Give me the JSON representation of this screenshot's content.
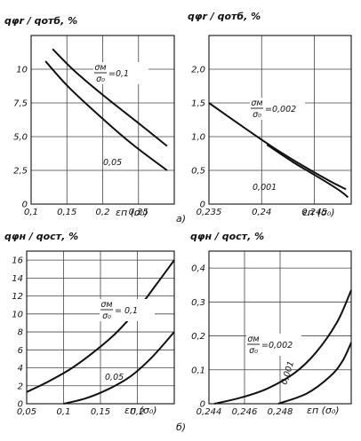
{
  "figure": {
    "label_a": "а)",
    "label_b": "б)"
  },
  "colors": {
    "ink": "#111111",
    "grid": "#444444",
    "paper": "#ffffff"
  },
  "chart_data": [
    {
      "id": "top-left",
      "type": "line",
      "title": "qφr / qотб, %",
      "xlabel": "εп (σ₀)",
      "ylabel": "",
      "xlim": [
        0.1,
        0.3
      ],
      "ylim": [
        0,
        12.5
      ],
      "x_ticks": [
        0.1,
        0.15,
        0.2,
        0.25
      ],
      "x_tick_labels": [
        "0,1",
        "0,15",
        "0,2",
        "0,25"
      ],
      "y_ticks": [
        0,
        2.5,
        5.0,
        7.5,
        10
      ],
      "y_tick_labels": [
        "0",
        "2,5",
        "5,0",
        "7,5",
        "10"
      ],
      "grid": true,
      "series": [
        {
          "name": "σм/σ₀ = 0,1",
          "x": [
            0.13,
            0.16,
            0.2,
            0.25,
            0.29
          ],
          "y": [
            11.5,
            9.9,
            8.1,
            6.0,
            4.3
          ]
        },
        {
          "name": "0,05",
          "x": [
            0.12,
            0.15,
            0.19,
            0.24,
            0.29
          ],
          "y": [
            10.6,
            8.8,
            6.8,
            4.5,
            2.5
          ]
        }
      ],
      "annotations": [
        {
          "text_num": "σм",
          "text_den": "σ₀",
          "text_val": "=0,1",
          "series": 0
        },
        {
          "text": "0,05",
          "series": 1
        }
      ]
    },
    {
      "id": "top-right",
      "type": "line",
      "title": "qφr / qотб, %",
      "xlabel": "εп (σ₀)",
      "ylabel": "",
      "xlim": [
        0.235,
        0.2485
      ],
      "ylim": [
        0,
        2.5
      ],
      "x_ticks": [
        0.235,
        0.24,
        0.245
      ],
      "x_tick_labels": [
        "0,235",
        "0,24",
        "0,245"
      ],
      "y_ticks": [
        0,
        0.5,
        1.0,
        1.5,
        2.0
      ],
      "y_tick_labels": [
        "0",
        "0,5",
        "1,0",
        "1,5",
        "2,0"
      ],
      "grid": true,
      "series": [
        {
          "name": "σм/σ₀ = 0,002",
          "x": [
            0.235,
            0.238,
            0.241,
            0.244,
            0.2465,
            0.248
          ],
          "y": [
            1.5,
            1.17,
            0.85,
            0.56,
            0.34,
            0.22
          ]
        },
        {
          "name": "0,001",
          "x": [
            0.2405,
            0.243,
            0.2445,
            0.246,
            0.2475,
            0.2482
          ],
          "y": [
            0.88,
            0.62,
            0.48,
            0.34,
            0.19,
            0.1
          ]
        }
      ],
      "annotations": [
        {
          "text_num": "σм",
          "text_den": "σ₀",
          "text_val": "=0,002",
          "series": 0
        },
        {
          "text": "0,001",
          "series": 1
        }
      ]
    },
    {
      "id": "bottom-left",
      "type": "line",
      "title": "qφн / qост, %",
      "xlabel": "εп (σ₀)",
      "ylabel": "",
      "xlim": [
        0.05,
        0.25
      ],
      "ylim": [
        0,
        17
      ],
      "x_ticks": [
        0.05,
        0.1,
        0.15,
        0.2
      ],
      "x_tick_labels": [
        "0,05",
        "0,1",
        "0,15",
        "0,2"
      ],
      "y_ticks": [
        0,
        2,
        4,
        6,
        8,
        10,
        12,
        14,
        16
      ],
      "y_tick_labels": [
        "0",
        "2",
        "4",
        "6",
        "8",
        "10",
        "12",
        "14",
        "16"
      ],
      "grid": true,
      "series": [
        {
          "name": "σм/σ₀ = 0,1",
          "x": [
            0.05,
            0.08,
            0.11,
            0.14,
            0.17,
            0.2,
            0.225,
            0.25
          ],
          "y": [
            1.3,
            2.5,
            3.9,
            5.7,
            7.8,
            10.5,
            13.2,
            16.0
          ]
        },
        {
          "name": "0,05",
          "x": [
            0.1,
            0.13,
            0.16,
            0.19,
            0.22,
            0.25
          ],
          "y": [
            0.0,
            0.6,
            1.6,
            3.0,
            5.2,
            8.0
          ]
        }
      ],
      "annotations": [
        {
          "text_num": "σм",
          "text_den": "σ₀",
          "text_val": "= 0,1",
          "series": 0
        },
        {
          "text": "0,05",
          "series": 1
        }
      ]
    },
    {
      "id": "bottom-right",
      "type": "line",
      "title": "qφн / qост, %",
      "xlabel": "εп (σ₀)",
      "ylabel": "",
      "xlim": [
        0.244,
        0.252
      ],
      "ylim": [
        0,
        0.45
      ],
      "x_ticks": [
        0.244,
        0.246,
        0.248
      ],
      "x_tick_labels": [
        "0,244",
        "0,246",
        "0,248"
      ],
      "y_ticks": [
        0,
        0.1,
        0.2,
        0.3,
        0.4
      ],
      "y_tick_labels": [
        "0",
        "0,1",
        "0,2",
        "0,3",
        "0,4"
      ],
      "grid": true,
      "series": [
        {
          "name": "σм/σ₀ = 0,002",
          "x": [
            0.2443,
            0.2458,
            0.2473,
            0.2488,
            0.25,
            0.2512,
            0.252
          ],
          "y": [
            0.0,
            0.018,
            0.045,
            0.09,
            0.15,
            0.24,
            0.335
          ]
        },
        {
          "name": "0,001",
          "x": [
            0.2479,
            0.2495,
            0.2508,
            0.2515,
            0.252
          ],
          "y": [
            0.0,
            0.03,
            0.08,
            0.125,
            0.18
          ]
        }
      ],
      "annotations": [
        {
          "text_num": "σм",
          "text_den": "σ₀",
          "text_val": "=0,002",
          "series": 0
        },
        {
          "text": "0,001",
          "series": 1
        }
      ]
    }
  ]
}
